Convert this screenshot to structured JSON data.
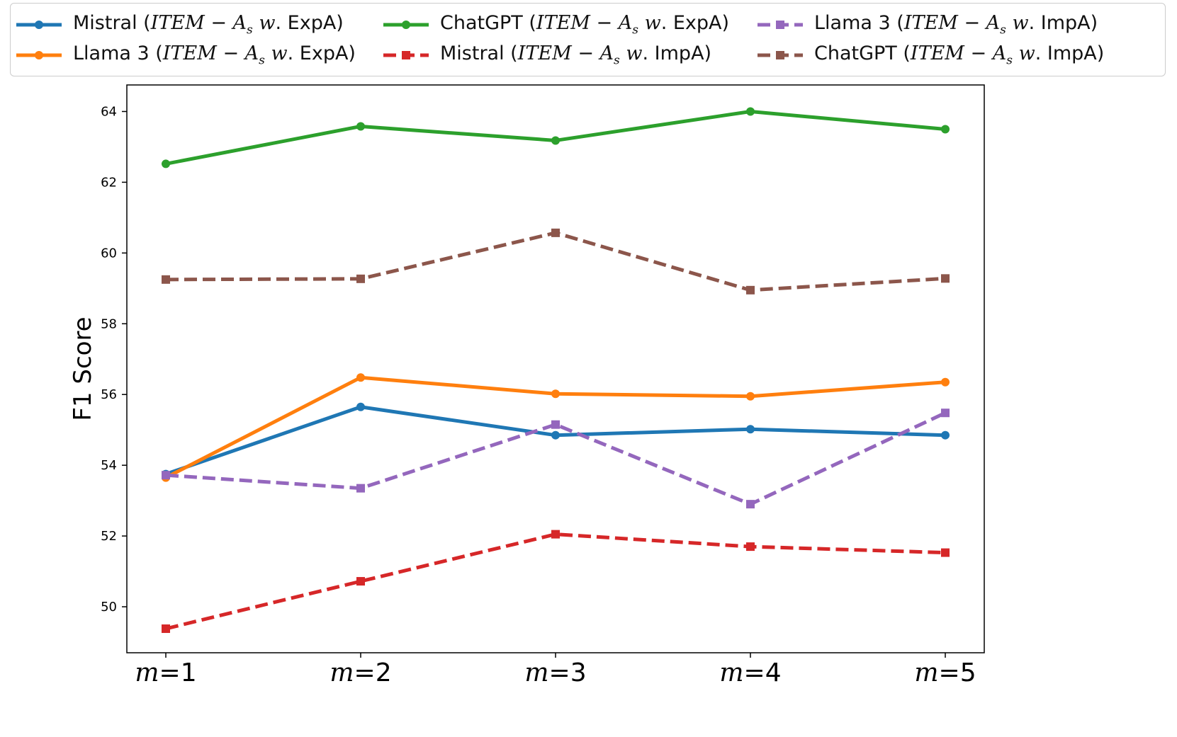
{
  "chart_data": {
    "type": "line",
    "categories": [
      "m=1",
      "m=2",
      "m=3",
      "m=4",
      "m=5"
    ],
    "ylabel": "F1 Score",
    "xlabel": "",
    "ylim": [
      48.7,
      64.75
    ],
    "yticks": [
      50,
      52,
      54,
      56,
      58,
      60,
      62,
      64
    ],
    "grid": false,
    "legend_position": "top",
    "series": [
      {
        "name": "Mistral (ITEM − A_s w. ExpA)",
        "prefix": "Mistral",
        "suffix": "ExpA",
        "color": "#1f77b4",
        "style": "solid",
        "marker": "circle",
        "values": [
          53.75,
          55.65,
          54.85,
          55.02,
          54.85
        ]
      },
      {
        "name": "Llama 3 (ITEM − A_s w. ExpA)",
        "prefix": "Llama 3",
        "suffix": "ExpA",
        "color": "#ff7f0e",
        "style": "solid",
        "marker": "circle",
        "values": [
          53.65,
          56.48,
          56.02,
          55.95,
          56.35
        ]
      },
      {
        "name": "ChatGPT (ITEM − A_s w. ExpA)",
        "prefix": "ChatGPT",
        "suffix": "ExpA",
        "color": "#2ca02c",
        "style": "solid",
        "marker": "circle",
        "values": [
          62.52,
          63.58,
          63.18,
          64.0,
          63.5
        ]
      },
      {
        "name": "Mistral (ITEM − A_s w. ImpA)",
        "prefix": "Mistral",
        "suffix": "ImpA",
        "color": "#d62728",
        "style": "dashed",
        "marker": "square",
        "values": [
          49.38,
          50.72,
          52.05,
          51.7,
          51.53
        ]
      },
      {
        "name": "Llama 3 (ITEM − A_s w. ImpA)",
        "prefix": "Llama 3",
        "suffix": "ImpA",
        "color": "#9467bd",
        "style": "dashed",
        "marker": "square",
        "values": [
          53.72,
          53.35,
          55.15,
          52.9,
          55.48
        ]
      },
      {
        "name": "ChatGPT (ITEM − A_s w. ImpA)",
        "prefix": "ChatGPT",
        "suffix": "ImpA",
        "color": "#8c564b",
        "style": "dashed",
        "marker": "square",
        "values": [
          59.25,
          59.27,
          60.57,
          58.95,
          59.28
        ]
      }
    ]
  }
}
